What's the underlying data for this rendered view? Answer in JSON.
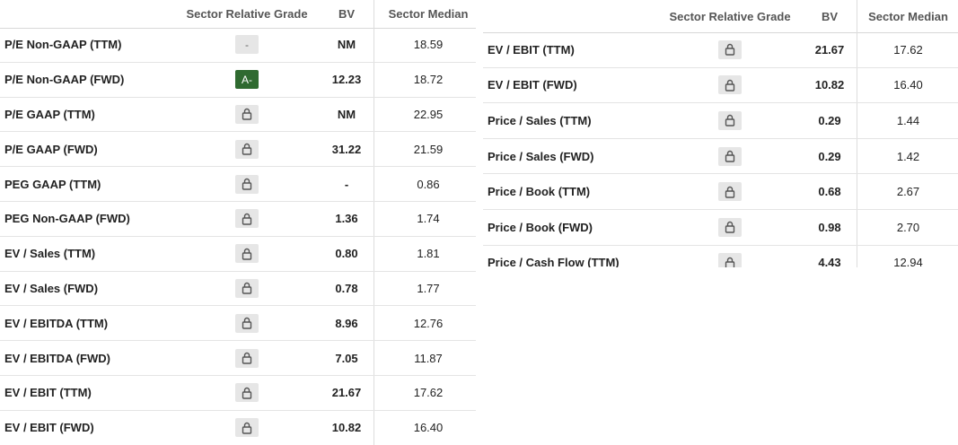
{
  "tables": [
    {
      "header": [
        "Sector Relative Grade",
        "BV",
        "Sector Median"
      ],
      "rows": [
        {
          "metric": "P/E Non-GAAP (TTM)",
          "grade": "-",
          "bv": "NM",
          "median": "18.59"
        },
        {
          "metric": "P/E Non-GAAP (FWD)",
          "grade": "A-",
          "bv": "12.23",
          "median": "18.72"
        },
        {
          "metric": "P/E GAAP (TTM)",
          "locked": true,
          "bv": "NM",
          "median": "22.95"
        },
        {
          "metric": "P/E GAAP (FWD)",
          "locked": true,
          "bv": "31.22",
          "median": "21.59"
        },
        {
          "metric": "PEG GAAP (TTM)",
          "locked": true,
          "bv": "-",
          "median": "0.86"
        },
        {
          "metric": "PEG Non-GAAP (FWD)",
          "locked": true,
          "bv": "1.36",
          "median": "1.74"
        },
        {
          "metric": "EV / Sales (TTM)",
          "locked": true,
          "bv": "0.80",
          "median": "1.81"
        },
        {
          "metric": "EV / Sales (FWD)",
          "locked": true,
          "bv": "0.78",
          "median": "1.77"
        },
        {
          "metric": "EV / EBITDA (TTM)",
          "locked": true,
          "bv": "8.96",
          "median": "12.76"
        },
        {
          "metric": "EV / EBITDA (FWD)",
          "locked": true,
          "bv": "7.05",
          "median": "11.87"
        },
        {
          "metric": "EV / EBIT (TTM)",
          "locked": true,
          "bv": "21.67",
          "median": "17.62"
        },
        {
          "metric": "EV / EBIT (FWD)",
          "locked": true,
          "bv": "10.82",
          "median": "16.40"
        }
      ]
    },
    {
      "header": [
        "Sector Relative Grade",
        "BV",
        "Sector Median"
      ],
      "rows": [
        {
          "metric": "EV / EBIT (TTM)",
          "locked": true,
          "bv": "21.67",
          "median": "17.62"
        },
        {
          "metric": "EV / EBIT (FWD)",
          "locked": true,
          "bv": "10.82",
          "median": "16.40"
        },
        {
          "metric": "Price / Sales (TTM)",
          "locked": true,
          "bv": "0.29",
          "median": "1.44"
        },
        {
          "metric": "Price / Sales (FWD)",
          "locked": true,
          "bv": "0.29",
          "median": "1.42"
        },
        {
          "metric": "Price / Book (TTM)",
          "locked": true,
          "bv": "0.68",
          "median": "2.67"
        },
        {
          "metric": "Price / Book (FWD)",
          "locked": true,
          "bv": "0.98",
          "median": "2.70"
        },
        {
          "metric": "Price / Cash Flow (TTM)",
          "locked": true,
          "bv": "4.43",
          "median": "12.94"
        }
      ]
    }
  ]
}
